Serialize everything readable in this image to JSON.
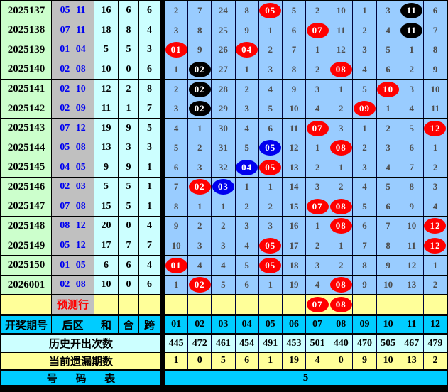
{
  "chart_data": {
    "type": "table",
    "description": "Lottery back-zone (后区) number trend chart, numbers 01-12, with miss counts; red/blue/black balls mark drawn numbers",
    "ball_colors": {
      "red": "#ff0000",
      "blue": "#0000ee",
      "black": "#000000"
    },
    "rows": [
      {
        "period": "2025137",
        "back": "05 11",
        "sum": "16",
        "he": "6",
        "kua": "6",
        "cells": [
          "2",
          "7",
          "24",
          "8",
          {
            "n": "05",
            "c": "red"
          },
          "5",
          "2",
          "10",
          "1",
          "3",
          {
            "n": "11",
            "c": "black"
          },
          "6"
        ]
      },
      {
        "period": "2025138",
        "back": "07 11",
        "sum": "18",
        "he": "8",
        "kua": "4",
        "cells": [
          "3",
          "8",
          "25",
          "9",
          "1",
          "6",
          {
            "n": "07",
            "c": "red"
          },
          "11",
          "2",
          "4",
          {
            "n": "11",
            "c": "black"
          },
          "7"
        ]
      },
      {
        "period": "2025139",
        "back": "01 04",
        "sum": "5",
        "he": "5",
        "kua": "3",
        "cells": [
          {
            "n": "01",
            "c": "red"
          },
          "9",
          "26",
          {
            "n": "04",
            "c": "red"
          },
          "2",
          "7",
          "1",
          "12",
          "3",
          "5",
          "1",
          "8"
        ]
      },
      {
        "period": "2025140",
        "back": "02 08",
        "sum": "10",
        "he": "0",
        "kua": "6",
        "cells": [
          "1",
          {
            "n": "02",
            "c": "black"
          },
          "27",
          "1",
          "3",
          "8",
          "2",
          {
            "n": "08",
            "c": "red"
          },
          "4",
          "6",
          "2",
          "9"
        ]
      },
      {
        "period": "2025141",
        "back": "02 10",
        "sum": "12",
        "he": "2",
        "kua": "8",
        "cells": [
          "2",
          {
            "n": "02",
            "c": "black"
          },
          "28",
          "2",
          "4",
          "9",
          "3",
          "1",
          "5",
          {
            "n": "10",
            "c": "red"
          },
          "3",
          "10"
        ]
      },
      {
        "period": "2025142",
        "back": "02 09",
        "sum": "11",
        "he": "1",
        "kua": "7",
        "cells": [
          "3",
          {
            "n": "02",
            "c": "black"
          },
          "29",
          "3",
          "5",
          "10",
          "4",
          "2",
          {
            "n": "09",
            "c": "red"
          },
          "1",
          "4",
          "11"
        ]
      },
      {
        "period": "2025143",
        "back": "07 12",
        "sum": "19",
        "he": "9",
        "kua": "5",
        "cells": [
          "4",
          "1",
          "30",
          "4",
          "6",
          "11",
          {
            "n": "07",
            "c": "red"
          },
          "3",
          "1",
          "2",
          "5",
          {
            "n": "12",
            "c": "red"
          }
        ]
      },
      {
        "period": "2025144",
        "back": "05 08",
        "sum": "13",
        "he": "3",
        "kua": "3",
        "cells": [
          "5",
          "2",
          "31",
          "5",
          {
            "n": "05",
            "c": "blue"
          },
          "12",
          "1",
          {
            "n": "08",
            "c": "red"
          },
          "2",
          "3",
          "6",
          "1"
        ]
      },
      {
        "period": "2025145",
        "back": "04 05",
        "sum": "9",
        "he": "9",
        "kua": "1",
        "cells": [
          "6",
          "3",
          "32",
          {
            "n": "04",
            "c": "blue"
          },
          {
            "n": "05",
            "c": "red"
          },
          "13",
          "2",
          "1",
          "3",
          "4",
          "7",
          "2"
        ]
      },
      {
        "period": "2025146",
        "back": "02 03",
        "sum": "5",
        "he": "5",
        "kua": "1",
        "cells": [
          "7",
          {
            "n": "02",
            "c": "red"
          },
          {
            "n": "03",
            "c": "blue"
          },
          "1",
          "1",
          "14",
          "3",
          "2",
          "4",
          "5",
          "8",
          "3"
        ]
      },
      {
        "period": "2025147",
        "back": "07 08",
        "sum": "15",
        "he": "5",
        "kua": "1",
        "cells": [
          "8",
          "1",
          "1",
          "2",
          "2",
          "15",
          {
            "n": "07",
            "c": "red"
          },
          {
            "n": "08",
            "c": "red"
          },
          "5",
          "6",
          "9",
          "4"
        ]
      },
      {
        "period": "2025148",
        "back": "08 12",
        "sum": "20",
        "he": "0",
        "kua": "4",
        "cells": [
          "9",
          "2",
          "2",
          "3",
          "3",
          "16",
          "1",
          {
            "n": "08",
            "c": "red"
          },
          "6",
          "7",
          "10",
          {
            "n": "12",
            "c": "red"
          }
        ]
      },
      {
        "period": "2025149",
        "back": "05 12",
        "sum": "17",
        "he": "7",
        "kua": "7",
        "cells": [
          "10",
          "3",
          "3",
          "4",
          {
            "n": "05",
            "c": "red"
          },
          "17",
          "2",
          "1",
          "7",
          "8",
          "11",
          {
            "n": "12",
            "c": "red"
          }
        ]
      },
      {
        "period": "2025150",
        "back": "01 05",
        "sum": "6",
        "he": "6",
        "kua": "4",
        "cells": [
          {
            "n": "01",
            "c": "red"
          },
          "4",
          "4",
          "5",
          {
            "n": "05",
            "c": "red"
          },
          "18",
          "3",
          "2",
          "8",
          "9",
          "12",
          "1"
        ]
      },
      {
        "period": "2026001",
        "back": "02 08",
        "sum": "10",
        "he": "0",
        "kua": "6",
        "cells": [
          "1",
          {
            "n": "02",
            "c": "red"
          },
          "5",
          "6",
          "1",
          "19",
          "4",
          {
            "n": "08",
            "c": "red"
          },
          "9",
          "10",
          "13",
          "2"
        ]
      },
      {
        "type": "prediction",
        "period": "",
        "back": "预测行",
        "sum": "",
        "he": "",
        "kua": "",
        "cells": [
          "",
          "",
          "",
          "",
          "",
          "",
          {
            "n": "07",
            "c": "red"
          },
          {
            "n": "08",
            "c": "red"
          },
          "",
          "",
          "",
          ""
        ]
      }
    ],
    "footer": {
      "header": {
        "period": "开奖期号",
        "back": "后区",
        "sum": "和",
        "he": "合",
        "kua": "跨",
        "numbers": [
          "01",
          "02",
          "03",
          "04",
          "05",
          "06",
          "07",
          "08",
          "09",
          "10",
          "11",
          "12"
        ]
      },
      "history": {
        "label": "历史开出次数",
        "values": [
          "445",
          "472",
          "461",
          "454",
          "491",
          "453",
          "501",
          "440",
          "470",
          "505",
          "467",
          "479"
        ]
      },
      "miss": {
        "label": "当前遗漏期数",
        "values": [
          "1",
          "0",
          "5",
          "6",
          "1",
          "19",
          "4",
          "0",
          "9",
          "10",
          "13",
          "2"
        ]
      },
      "number_table": {
        "label": "号 码 表",
        "value": "5"
      }
    },
    "palette": {
      "period_bg": "#ccffcc",
      "back_bg": "#c0c0c0",
      "shk_bg": "#ccffff",
      "grid_bg": "#99ccff",
      "prediction_bg": "#ffff99",
      "header_bg": "#00ccff",
      "history_bg": "#ccffff",
      "miss_bg": "#ffff99",
      "back_text": "#0000f0",
      "prediction_text": "#ff0000",
      "miss_number_text": "#4d4d4d"
    }
  }
}
